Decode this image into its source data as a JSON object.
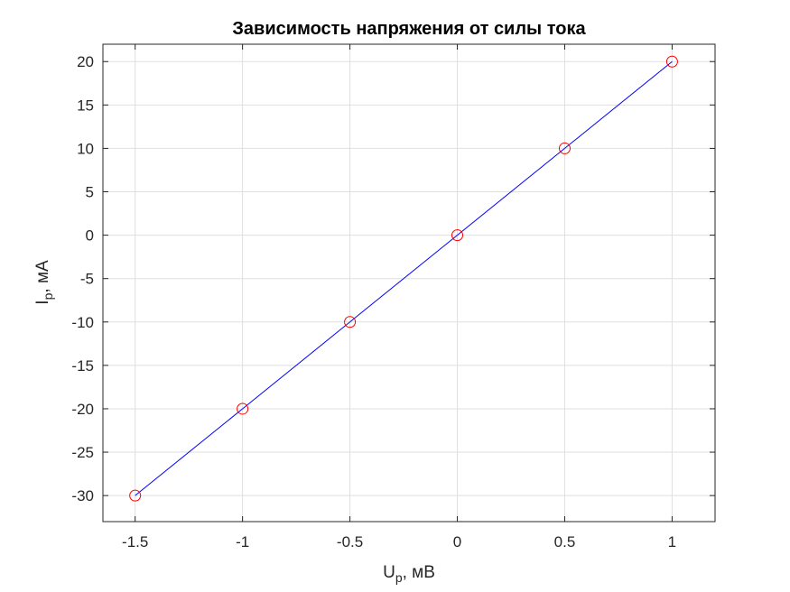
{
  "chart_data": {
    "type": "line",
    "title": "Зависимость напряжения от силы тока",
    "xlabel": {
      "main": "U",
      "sub": "p",
      "rest": ", мВ"
    },
    "ylabel": {
      "main": "I",
      "sub": "p",
      "rest": ", мА"
    },
    "xlim": [
      -1.65,
      1.2
    ],
    "ylim": [
      -33,
      22
    ],
    "xticks": [
      -1.5,
      -1,
      -0.5,
      0,
      0.5,
      1
    ],
    "xtick_labels": [
      "-1.5",
      "-1",
      "-0.5",
      "0",
      "0.5",
      "1"
    ],
    "yticks": [
      20,
      15,
      10,
      5,
      0,
      -5,
      -10,
      -15,
      -20,
      -25,
      -30
    ],
    "ytick_labels": [
      "20",
      "15",
      "10",
      "5",
      "0",
      "-5",
      "-10",
      "-15",
      "-20",
      "-25",
      "-30"
    ],
    "grid": true,
    "series": [
      {
        "x": [
          -1.5,
          -1,
          -0.5,
          0,
          0.5,
          1
        ],
        "y": [
          -30,
          -20,
          -10,
          0,
          10,
          20
        ],
        "line_color": "#0000ff",
        "marker": "circle",
        "marker_color": "#ff0000"
      }
    ]
  }
}
